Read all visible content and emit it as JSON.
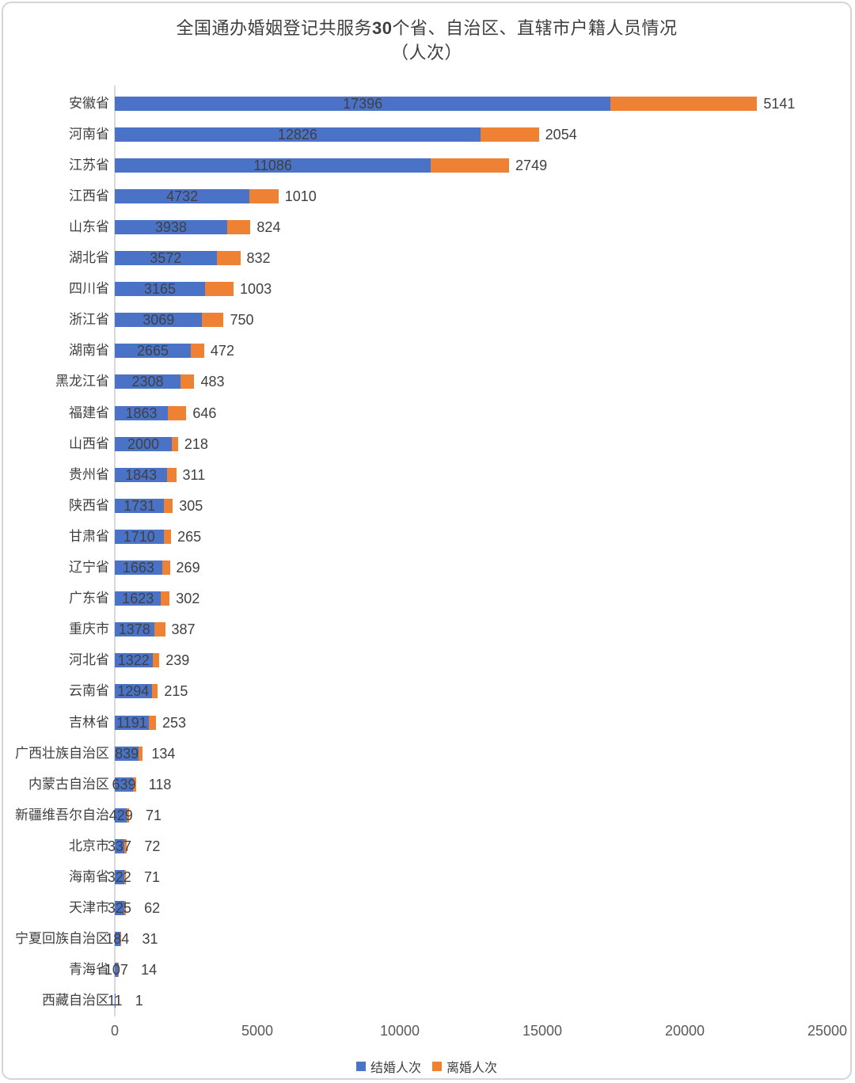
{
  "title": {
    "prefix": "全国通办婚姻登记共服务",
    "bold_number": "30",
    "suffix": "个省、自治区、直辖市户籍人员情况",
    "line2": "（人次）"
  },
  "colors": {
    "marriage_blue": "#4a73c8",
    "divorce_orange": "#ee8133",
    "label_text": "#404040",
    "axis_text": "#595959",
    "axis_line": "#d9d9d9"
  },
  "chart_data": {
    "type": "bar",
    "orientation": "horizontal",
    "stacked": true,
    "title": "全国通办婚姻登记共服务30个省、自治区、直辖市户籍人员情况（人次）",
    "categories": [
      "安徽省",
      "河南省",
      "江苏省",
      "江西省",
      "山东省",
      "湖北省",
      "四川省",
      "浙江省",
      "湖南省",
      "黑龙江省",
      "福建省",
      "山西省",
      "贵州省",
      "陕西省",
      "甘肃省",
      "辽宁省",
      "广东省",
      "重庆市",
      "河北省",
      "云南省",
      "吉林省",
      "广西壮族自治区",
      "内蒙古自治区",
      "新疆维吾尔自治",
      "北京市",
      "海南省",
      "天津市",
      "宁夏回族自治区",
      "青海省",
      "西藏自治区"
    ],
    "series": [
      {
        "name": "结婚人次",
        "color": "#4a73c8",
        "values": [
          17396,
          12826,
          11086,
          4732,
          3938,
          3572,
          3165,
          3069,
          2665,
          2308,
          1863,
          2000,
          1843,
          1731,
          1710,
          1663,
          1623,
          1378,
          1322,
          1294,
          1191,
          839,
          639,
          429,
          337,
          322,
          325,
          184,
          107,
          11
        ]
      },
      {
        "name": "离婚人次",
        "color": "#ee8133",
        "values": [
          5141,
          2054,
          2749,
          1010,
          824,
          832,
          1003,
          750,
          472,
          483,
          646,
          218,
          311,
          305,
          265,
          269,
          302,
          387,
          239,
          215,
          253,
          134,
          118,
          71,
          72,
          71,
          62,
          31,
          14,
          1
        ]
      }
    ],
    "x_axis": {
      "ticks": [
        0,
        5000,
        10000,
        15000,
        20000,
        25000
      ],
      "min": 0,
      "max": 25000,
      "gridlines": false
    },
    "legend": {
      "position": "bottom",
      "items": [
        "结婚人次",
        "离婚人次"
      ]
    }
  }
}
